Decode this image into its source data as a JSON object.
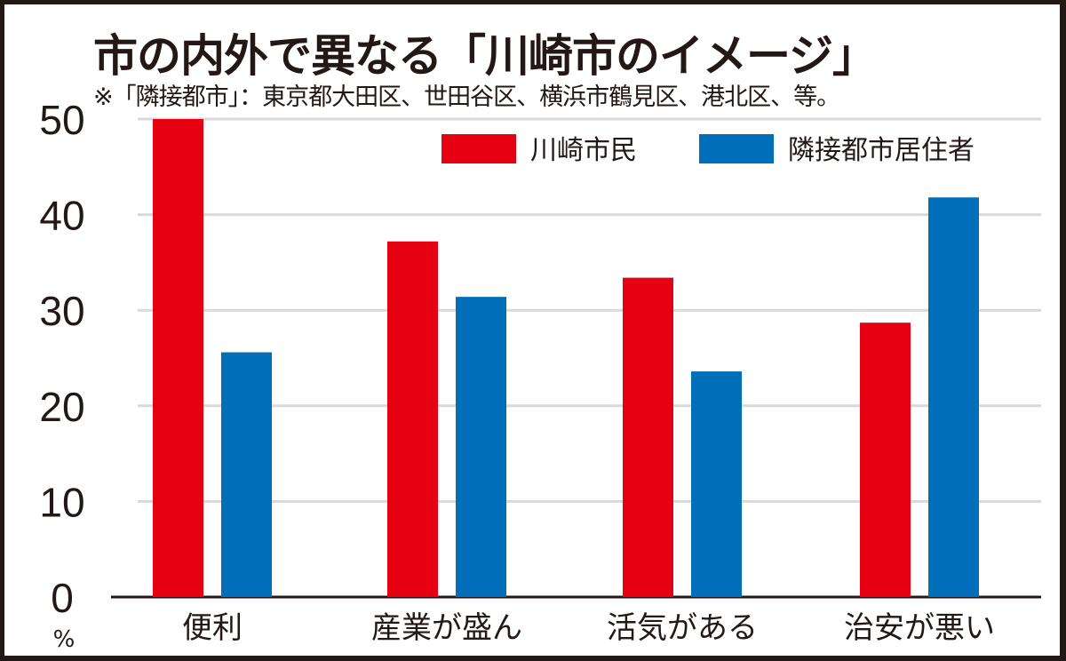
{
  "chart_data": {
    "type": "bar",
    "title": "市の内外で異なる「川崎市のイメージ」",
    "subtitle": "※「隣接都市」：東京都大田区、世田谷区、横浜市鶴見区、港北区、等。",
    "categories": [
      "便利",
      "産業が盛ん",
      "活気がある",
      "治安が悪い"
    ],
    "series": [
      {
        "name": "川崎市民",
        "color": "#e60012",
        "values": [
          50.0,
          37.2,
          33.4,
          28.7
        ]
      },
      {
        "name": "隣接都市居住者",
        "color": "#006eb8",
        "values": [
          25.6,
          31.4,
          23.6,
          41.8
        ]
      }
    ],
    "yticks": [
      "0",
      "10",
      "20",
      "30",
      "40",
      "50"
    ],
    "ylim": [
      0,
      50
    ],
    "ylabel": "%",
    "grid": true,
    "legend": "top-right"
  }
}
